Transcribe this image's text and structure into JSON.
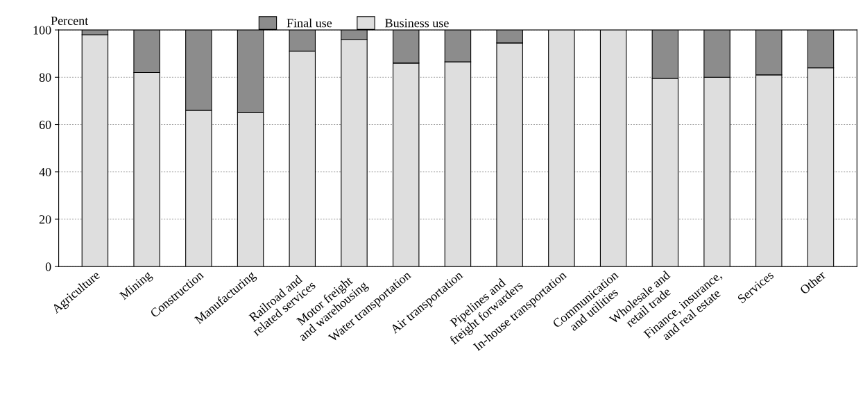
{
  "chart_data": {
    "type": "bar",
    "stacked": true,
    "ylabel": "Percent",
    "categories": [
      "Agriculture",
      "Mining",
      "Construction",
      "Manufacturing",
      "Railroad and\nrelated services",
      "Motor freight\nand warehousing",
      "Water transportation",
      "Air transportation",
      "Pipelines and\nfreight forwarders",
      "In-house transportation",
      "Communication\nand utilities",
      "Wholesale and\nretail trade",
      "Finance, insurance,\nand real estate",
      "Services",
      "Other"
    ],
    "series": [
      {
        "name": "Business use",
        "color": "#dedede",
        "values": [
          98,
          82,
          66,
          65,
          91,
          96,
          86,
          86.5,
          94.5,
          100,
          100,
          79.5,
          80,
          81,
          84
        ]
      },
      {
        "name": "Final use",
        "color": "#8c8c8c",
        "values": [
          2,
          18,
          34,
          35,
          9,
          4,
          14,
          13.5,
          5.5,
          null,
          null,
          20.5,
          20,
          19,
          16
        ]
      }
    ],
    "ylim": [
      0,
      100
    ],
    "yticks": [
      0,
      20,
      40,
      60,
      80,
      100
    ],
    "grid": "y",
    "legend": "top"
  }
}
